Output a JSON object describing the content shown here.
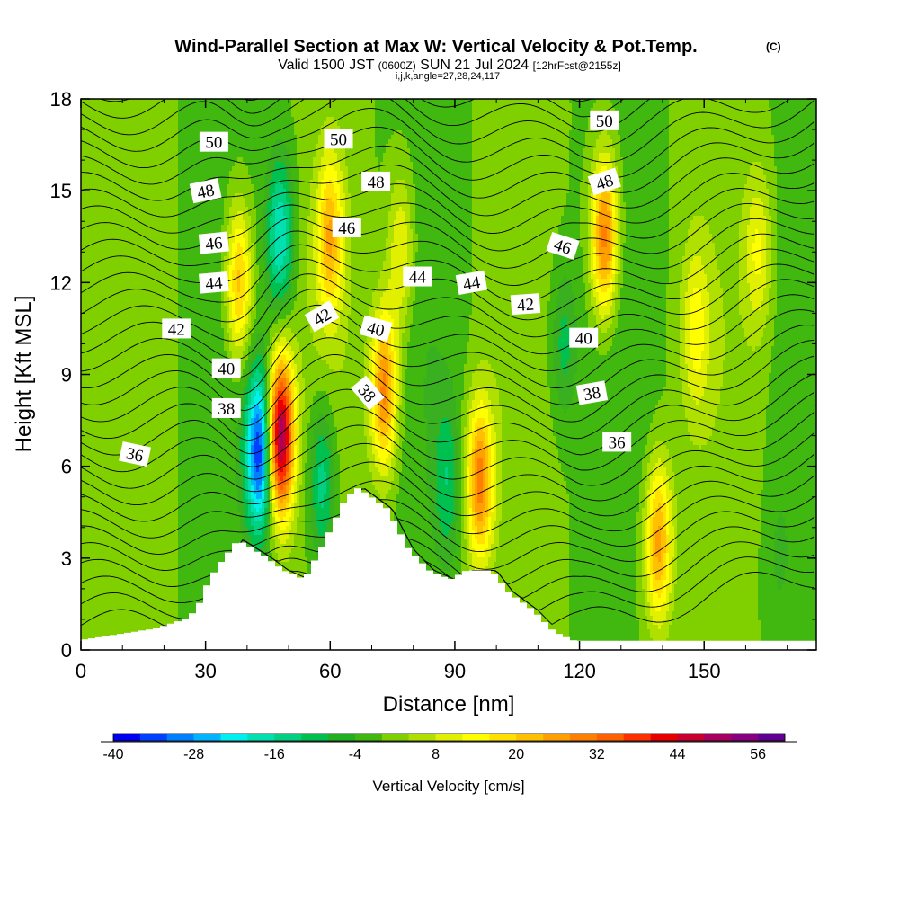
{
  "title": {
    "main": "Wind-Parallel Section at Max W: Vertical Velocity & Pot.Temp.",
    "copyright": "(C)",
    "valid_a": "Valid 1500 JST ",
    "valid_b": "(0600Z)",
    "valid_c": " SUN 21 Jul 2024 ",
    "valid_d": "[12hrFcst@2155z]",
    "indices": "i,j,k,angle=27,28,24,117"
  },
  "chart_data": {
    "type": "heatmap",
    "xlabel": "Distance [nm]",
    "ylabel": "Height [Kft MSL]",
    "xlim": [
      0,
      177
    ],
    "ylim": [
      0,
      18
    ],
    "x_ticks": [
      0,
      30,
      60,
      90,
      120,
      150
    ],
    "y_ticks": [
      0,
      3,
      6,
      9,
      12,
      15,
      18
    ],
    "colorbar": {
      "label": "Vertical Velocity [cm/s]",
      "min": -40,
      "max": 60,
      "step": 4,
      "tick_values": [
        -40,
        -28,
        -16,
        -4,
        8,
        20,
        32,
        44,
        56
      ],
      "colors": [
        "#0000f0",
        "#0040ff",
        "#0080ff",
        "#00b4ff",
        "#00f0f0",
        "#00e0b0",
        "#00d080",
        "#00c050",
        "#20b020",
        "#40b810",
        "#80d000",
        "#b0e000",
        "#e0f000",
        "#ffff00",
        "#ffe000",
        "#ffc000",
        "#ffa000",
        "#ff8000",
        "#ff6000",
        "#ff3000",
        "#e80000",
        "#c80030",
        "#a80060",
        "#880080",
        "#600090"
      ]
    },
    "background_w_cms": 0,
    "vertical_velocity_features": [
      {
        "x": 48,
        "z": 7.0,
        "w": 52
      },
      {
        "x": 43,
        "z": 6.5,
        "w": -36
      },
      {
        "x": 38,
        "z": 12.0,
        "w": 24
      },
      {
        "x": 48,
        "z": 13.5,
        "w": -20
      },
      {
        "x": 60,
        "z": 13.5,
        "w": 22
      },
      {
        "x": 58,
        "z": 5.5,
        "w": -16
      },
      {
        "x": 73,
        "z": 8.5,
        "w": 30
      },
      {
        "x": 77,
        "z": 13.0,
        "w": 14
      },
      {
        "x": 96,
        "z": 5.5,
        "w": 30
      },
      {
        "x": 88,
        "z": 5.5,
        "w": -10
      },
      {
        "x": 126,
        "z": 13.5,
        "w": 32
      },
      {
        "x": 116,
        "z": 10.0,
        "w": -10
      },
      {
        "x": 139,
        "z": 3.5,
        "w": 26
      },
      {
        "x": 148,
        "z": 10.5,
        "w": 12
      },
      {
        "x": 163,
        "z": 13.0,
        "w": 12
      },
      {
        "x": 168,
        "z": 3.0,
        "w": -4
      }
    ],
    "terrain_profile_kft": {
      "x": [
        0,
        19,
        26,
        29,
        32,
        35,
        39,
        46,
        50,
        55,
        60,
        65,
        68,
        75,
        80,
        85,
        90,
        94,
        100,
        104,
        110,
        115,
        120,
        177
      ],
      "z": [
        0.3,
        0.7,
        1.0,
        1.3,
        2.3,
        2.9,
        3.6,
        3.0,
        2.6,
        2.3,
        3.6,
        5.0,
        5.3,
        4.6,
        3.3,
        2.6,
        2.3,
        2.6,
        2.6,
        1.9,
        1.3,
        0.6,
        0.3,
        0.3
      ]
    },
    "theta_contour_labels": [
      {
        "value": "50",
        "x": 32,
        "z": 16.6
      },
      {
        "value": "50",
        "x": 62,
        "z": 16.7
      },
      {
        "value": "50",
        "x": 126,
        "z": 17.3
      },
      {
        "value": "48",
        "x": 30,
        "z": 15.0
      },
      {
        "value": "48",
        "x": 71,
        "z": 15.3
      },
      {
        "value": "48",
        "x": 126,
        "z": 15.3
      },
      {
        "value": "46",
        "x": 32,
        "z": 13.3
      },
      {
        "value": "46",
        "x": 64,
        "z": 13.8
      },
      {
        "value": "46",
        "x": 116,
        "z": 13.2
      },
      {
        "value": "44",
        "x": 32,
        "z": 12.0
      },
      {
        "value": "44",
        "x": 81,
        "z": 12.2
      },
      {
        "value": "44",
        "x": 94,
        "z": 12.0
      },
      {
        "value": "42",
        "x": 23,
        "z": 10.5
      },
      {
        "value": "42",
        "x": 58,
        "z": 10.9
      },
      {
        "value": "42",
        "x": 107,
        "z": 11.3
      },
      {
        "value": "40",
        "x": 35,
        "z": 9.2
      },
      {
        "value": "40",
        "x": 71,
        "z": 10.5
      },
      {
        "value": "40",
        "x": 121,
        "z": 10.2
      },
      {
        "value": "38",
        "x": 35,
        "z": 7.9
      },
      {
        "value": "38",
        "x": 69,
        "z": 8.4
      },
      {
        "value": "38",
        "x": 123,
        "z": 8.4
      },
      {
        "value": "36",
        "x": 13,
        "z": 6.4
      },
      {
        "value": "36",
        "x": 129,
        "z": 6.8
      }
    ],
    "theta_contour_angles_deg": [
      0,
      0,
      0,
      -12,
      0,
      -18,
      -6,
      0,
      18,
      -5,
      0,
      -10,
      0,
      -30,
      -4,
      0,
      15,
      0,
      0,
      50,
      -10,
      12,
      0
    ]
  }
}
